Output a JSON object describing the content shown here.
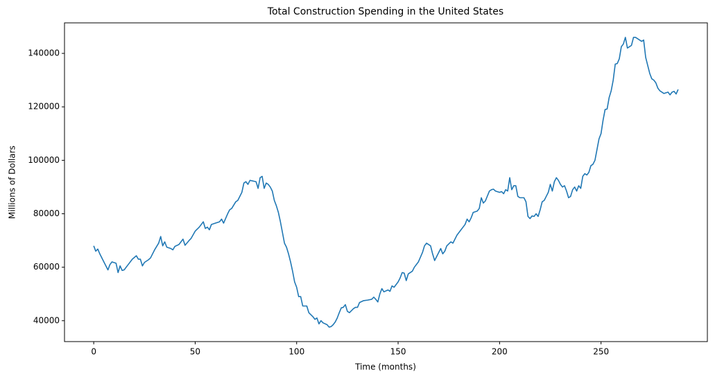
{
  "chart_data": {
    "type": "line",
    "title": "Total Construction Spending in the United States",
    "xlabel": "Time (months)",
    "ylabel": "Millions of Dollars",
    "color": "#1f77b4",
    "x": [
      0,
      1,
      2,
      3,
      5,
      7,
      8,
      9,
      11,
      12,
      13,
      14,
      15,
      17,
      19,
      21,
      22,
      23,
      24,
      25,
      27,
      28,
      30,
      32,
      33,
      34,
      35,
      36,
      38,
      39,
      40,
      42,
      44,
      45,
      47,
      48,
      50,
      52,
      54,
      55,
      56,
      57,
      58,
      60,
      62,
      63,
      64,
      66,
      67,
      68,
      70,
      71,
      73,
      74,
      75,
      76,
      77,
      80,
      81,
      82,
      83,
      84,
      85,
      86,
      87,
      88,
      89,
      90,
      91,
      92,
      93,
      94,
      95,
      96,
      97,
      98,
      99,
      100,
      101,
      102,
      103,
      105,
      106,
      108,
      109,
      110,
      111,
      112,
      113,
      115,
      116,
      117,
      118,
      119,
      120,
      121,
      122,
      123,
      124,
      125,
      126,
      128,
      129,
      130,
      131,
      133,
      135,
      137,
      138,
      139,
      140,
      141,
      142,
      143,
      145,
      146,
      147,
      148,
      150,
      151,
      152,
      153,
      154,
      155,
      157,
      158,
      160,
      162,
      163,
      164,
      166,
      167,
      168,
      169,
      171,
      172,
      173,
      174,
      176,
      177,
      179,
      181,
      182,
      183,
      184,
      185,
      186,
      187,
      189,
      190,
      191,
      192,
      193,
      195,
      196,
      197,
      198,
      200,
      201,
      202,
      203,
      204,
      205,
      206,
      207,
      208,
      209,
      210,
      212,
      213,
      214,
      215,
      216,
      217,
      218,
      219,
      220,
      221,
      222,
      223,
      224,
      225,
      226,
      227,
      228,
      229,
      230,
      231,
      232,
      233,
      234,
      235,
      236,
      237,
      238,
      239,
      240,
      241,
      242,
      243,
      244,
      245,
      246,
      247,
      248,
      249,
      250,
      251,
      252,
      253,
      254,
      255,
      256,
      257,
      258,
      259,
      260,
      261,
      262,
      263,
      264,
      265,
      266,
      267,
      268,
      270,
      271,
      272,
      273,
      274,
      275,
      276,
      277,
      278,
      279,
      281,
      283,
      284,
      285,
      286,
      287,
      288
    ],
    "values": [
      68000,
      66000,
      66800,
      65000,
      62000,
      59000,
      61000,
      62000,
      61500,
      58000,
      60500,
      58800,
      59000,
      61000,
      63000,
      64300,
      63000,
      63000,
      60500,
      61800,
      62800,
      63500,
      66500,
      69000,
      71500,
      68000,
      69500,
      67500,
      67000,
      66500,
      67800,
      68500,
      70500,
      68200,
      70000,
      70800,
      73500,
      75000,
      77000,
      74500,
      75000,
      74000,
      76000,
      76500,
      77000,
      78000,
      76500,
      80000,
      81500,
      82000,
      84500,
      85000,
      88000,
      91500,
      92000,
      91000,
      92500,
      92000,
      89500,
      93500,
      94000,
      89500,
      91500,
      91000,
      90000,
      88500,
      85000,
      83000,
      80500,
      77000,
      73000,
      69000,
      67500,
      65000,
      62000,
      58500,
      54500,
      52500,
      49000,
      49000,
      45500,
      45500,
      43000,
      41500,
      40500,
      41000,
      38800,
      40000,
      39200,
      38500,
      37600,
      37800,
      38500,
      39500,
      41000,
      43000,
      44800,
      45000,
      46000,
      43500,
      43000,
      44500,
      45000,
      45000,
      46800,
      47500,
      47700,
      48000,
      48800,
      48000,
      47000,
      50000,
      52000,
      50800,
      51500,
      51000,
      53000,
      52500,
      54500,
      56000,
      58000,
      57800,
      55000,
      57500,
      58500,
      60000,
      62000,
      65500,
      68000,
      69000,
      68000,
      65000,
      62500,
      64000,
      67000,
      65000,
      66000,
      68000,
      69500,
      69000,
      72000,
      74000,
      75000,
      76000,
      78000,
      77000,
      78500,
      80500,
      81000,
      82000,
      86000,
      84000,
      84800,
      88500,
      89000,
      89200,
      88500,
      88000,
      88300,
      87500,
      89000,
      88500,
      93500,
      89000,
      90500,
      90500,
      86500,
      86000,
      86000,
      84500,
      79000,
      78200,
      79200,
      79000,
      80000,
      79000,
      81500,
      84500,
      85000,
      86500,
      88000,
      91000,
      88500,
      92000,
      93500,
      92500,
      91000,
      90000,
      90500,
      88500,
      86000,
      86500,
      89000,
      90000,
      88500,
      90500,
      89500,
      94000,
      95000,
      94500,
      95500,
      98000,
      98500,
      100000,
      104000,
      108000,
      110000,
      115000,
      119000,
      119200,
      123500,
      126000,
      130000,
      136000,
      136200,
      138000,
      142500,
      143500,
      146000,
      142000,
      142500,
      143000,
      146000,
      146000,
      145500,
      144500,
      145000,
      138500,
      135500,
      132500,
      130500,
      130000,
      129000,
      127000,
      126000,
      125000,
      125500,
      124500,
      125500,
      125800,
      124800,
      126500
    ],
    "xlim": [
      -14.4,
      302.4
    ],
    "xticks": [
      0,
      50,
      100,
      150,
      200,
      250
    ],
    "ylim": [
      32180,
      151420
    ],
    "yticks": [
      40000,
      60000,
      80000,
      100000,
      120000,
      140000
    ]
  }
}
